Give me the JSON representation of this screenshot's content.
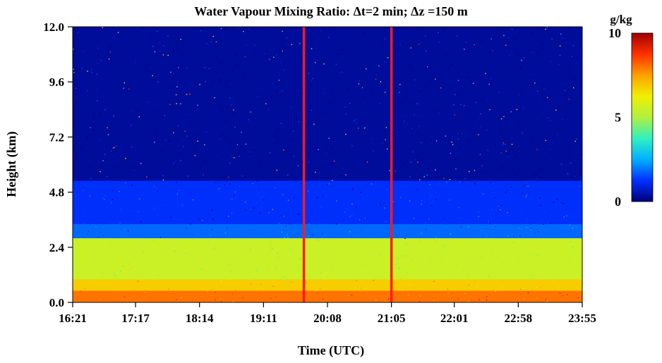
{
  "chart_data": {
    "type": "heatmap",
    "title": "Water Vapour Mixing Ratio: Δt=2 min; Δz =150 m",
    "xlabel": "Time (UTC)",
    "ylabel": "Height (km)",
    "x_ticks": [
      "16:21",
      "17:17",
      "18:14",
      "19:11",
      "20:08",
      "21:05",
      "22:01",
      "22:58",
      "23:55"
    ],
    "x_range": [
      "16:21",
      "23:55"
    ],
    "y_ticks": [
      "0.0",
      "2.4",
      "4.8",
      "7.2",
      "9.6",
      "12.0"
    ],
    "y_range": [
      0,
      12
    ],
    "colorbar": {
      "unit": "g/kg",
      "ticks": [
        "10",
        "5",
        "0"
      ],
      "range": [
        0,
        10
      ],
      "colors": [
        "#00007a",
        "#0030ff",
        "#00b0ff",
        "#30f0c0",
        "#b0f040",
        "#f0f000",
        "#ffa000",
        "#ff3000",
        "#a00000"
      ]
    },
    "markers": [
      {
        "time": "19:47",
        "color": "#ff1a1a"
      },
      {
        "time": "21:05",
        "color": "#ff1a1a"
      }
    ],
    "layers": [
      {
        "from_km": 0.0,
        "to_km": 0.5,
        "g_per_kg": 8.0
      },
      {
        "from_km": 0.5,
        "to_km": 1.0,
        "g_per_kg": 6.8
      },
      {
        "from_km": 1.0,
        "to_km": 2.8,
        "g_per_kg": 5.5
      },
      {
        "from_km": 2.8,
        "to_km": 3.4,
        "g_per_kg": 1.8
      },
      {
        "from_km": 3.4,
        "to_km": 5.3,
        "g_per_kg": 1.2
      },
      {
        "from_km": 5.3,
        "to_km": 12.0,
        "g_per_kg": 0.3
      }
    ]
  }
}
